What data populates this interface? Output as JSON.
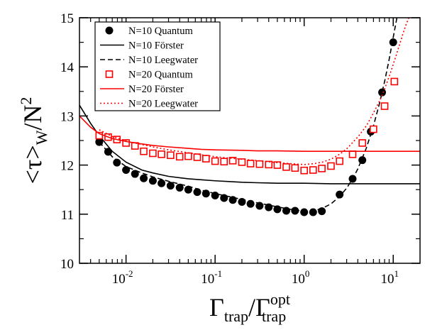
{
  "chart_data": {
    "type": "scatter",
    "x_scale": "log",
    "xlim": [
      0.003,
      20
    ],
    "ylim": [
      10,
      15
    ],
    "grid": false,
    "legend_position": "top-left",
    "xlabel": {
      "main": "Γ",
      "sub": "trap",
      "div": "/Γ",
      "sup2": "opt",
      "sub2": "trap"
    },
    "ylabel": {
      "main": "<τ>",
      "sub": "W",
      "div": "/N",
      "sup": "2"
    },
    "y_ticks": [
      "10",
      "11",
      "12",
      "13",
      "14",
      "15"
    ],
    "x_ticks": [
      {
        "value": 0.01,
        "label": "10",
        "exp": "-2"
      },
      {
        "value": 0.1,
        "label": "10",
        "exp": "-1"
      },
      {
        "value": 1,
        "label": "10",
        "exp": "0"
      },
      {
        "value": 10,
        "label": "10",
        "exp": "1"
      }
    ],
    "series": [
      {
        "name": "N=10 Quantum",
        "style": "marker-circle",
        "color": "#000000",
        "x": [
          0.005,
          0.0063,
          0.0079,
          0.01,
          0.0126,
          0.0158,
          0.02,
          0.025,
          0.0316,
          0.04,
          0.05,
          0.063,
          0.079,
          0.1,
          0.126,
          0.158,
          0.2,
          0.25,
          0.316,
          0.4,
          0.5,
          0.63,
          0.79,
          1.0,
          1.26,
          1.58,
          2.5,
          3.5,
          4.5,
          5.6,
          7.5,
          10.0
        ],
        "y": [
          12.47,
          12.27,
          12.05,
          11.9,
          11.82,
          11.73,
          11.68,
          11.63,
          11.58,
          11.54,
          11.5,
          11.45,
          11.42,
          11.38,
          11.33,
          11.29,
          11.25,
          11.21,
          11.17,
          11.14,
          11.1,
          11.07,
          11.07,
          11.04,
          11.04,
          11.06,
          11.4,
          11.72,
          12.1,
          12.68,
          13.48,
          14.5
        ]
      },
      {
        "name": "N=10 Förster",
        "style": "line-solid",
        "color": "#000000",
        "x": [
          0.003,
          0.004,
          0.005,
          0.007,
          0.01,
          0.015,
          0.02,
          0.03,
          0.05,
          0.07,
          0.1,
          0.2,
          0.3,
          0.5,
          1.0,
          2.0,
          5.0,
          10.0,
          20.0
        ],
        "y": [
          13.22,
          12.85,
          12.6,
          12.28,
          12.06,
          11.9,
          11.84,
          11.77,
          11.72,
          11.7,
          11.68,
          11.65,
          11.64,
          11.63,
          11.63,
          11.62,
          11.62,
          11.62,
          11.62
        ]
      },
      {
        "name": "N=10 Leegwater",
        "style": "line-dashed",
        "color": "#000000",
        "x": [
          0.005,
          0.007,
          0.01,
          0.015,
          0.02,
          0.03,
          0.05,
          0.07,
          0.1,
          0.15,
          0.2,
          0.3,
          0.5,
          0.7,
          1.0,
          1.3,
          1.6,
          2.0,
          2.5,
          3.0,
          3.5,
          4.0,
          5.0,
          6.0,
          7.0,
          8.0,
          9.0,
          10.0,
          11.0
        ],
        "y": [
          12.47,
          12.17,
          11.97,
          11.84,
          11.76,
          11.67,
          11.57,
          11.49,
          11.42,
          11.35,
          11.3,
          11.23,
          11.15,
          11.1,
          11.06,
          11.07,
          11.12,
          11.21,
          11.36,
          11.53,
          11.72,
          11.92,
          12.35,
          12.8,
          13.25,
          13.7,
          14.15,
          14.6,
          15.0
        ]
      },
      {
        "name": "N=20 Quantum",
        "style": "marker-square",
        "color": "#ff0000",
        "x": [
          0.005,
          0.0063,
          0.0079,
          0.01,
          0.0126,
          0.0158,
          0.02,
          0.025,
          0.0316,
          0.04,
          0.05,
          0.063,
          0.079,
          0.1,
          0.126,
          0.158,
          0.2,
          0.25,
          0.316,
          0.4,
          0.5,
          0.63,
          0.79,
          1.0,
          1.26,
          1.58,
          2.0,
          2.5,
          3.5,
          4.5,
          6.0,
          8.0,
          10.3
        ],
        "y": [
          12.6,
          12.57,
          12.52,
          12.45,
          12.39,
          12.28,
          12.24,
          12.22,
          12.2,
          12.17,
          12.18,
          12.16,
          12.13,
          12.08,
          12.07,
          12.09,
          12.06,
          12.03,
          12.02,
          12.01,
          12.0,
          11.96,
          11.94,
          11.89,
          11.9,
          11.93,
          11.98,
          12.08,
          12.22,
          12.45,
          12.73,
          13.2,
          13.7
        ]
      },
      {
        "name": "N=20 Förster",
        "style": "line-solid",
        "color": "#ff0000",
        "x": [
          0.003,
          0.004,
          0.005,
          0.007,
          0.01,
          0.015,
          0.02,
          0.03,
          0.05,
          0.07,
          0.1,
          0.2,
          0.3,
          0.5,
          1.0,
          2.0,
          5.0,
          10.0,
          20.0
        ],
        "y": [
          13.0,
          12.77,
          12.64,
          12.54,
          12.48,
          12.43,
          12.4,
          12.37,
          12.34,
          12.32,
          12.31,
          12.3,
          12.29,
          12.29,
          12.28,
          12.28,
          12.28,
          12.28,
          12.28
        ]
      },
      {
        "name": "N=20 Leegwater",
        "style": "line-dotted",
        "color": "#ff0000",
        "x": [
          0.005,
          0.007,
          0.01,
          0.015,
          0.02,
          0.03,
          0.05,
          0.07,
          0.1,
          0.15,
          0.2,
          0.3,
          0.5,
          0.7,
          1.0,
          1.3,
          1.6,
          2.0,
          2.5,
          3.0,
          4.0,
          5.0,
          6.0,
          7.0,
          8.0,
          9.0,
          10.0,
          11.0,
          12.0,
          13.0,
          14.0,
          15.0
        ],
        "y": [
          12.72,
          12.58,
          12.49,
          12.42,
          12.37,
          12.31,
          12.25,
          12.21,
          12.17,
          12.14,
          12.12,
          12.09,
          12.05,
          12.03,
          12.01,
          12.03,
          12.06,
          12.12,
          12.22,
          12.33,
          12.57,
          12.8,
          13.06,
          13.3,
          13.55,
          13.8,
          14.05,
          14.28,
          14.5,
          14.7,
          14.87,
          15.0
        ]
      }
    ]
  }
}
